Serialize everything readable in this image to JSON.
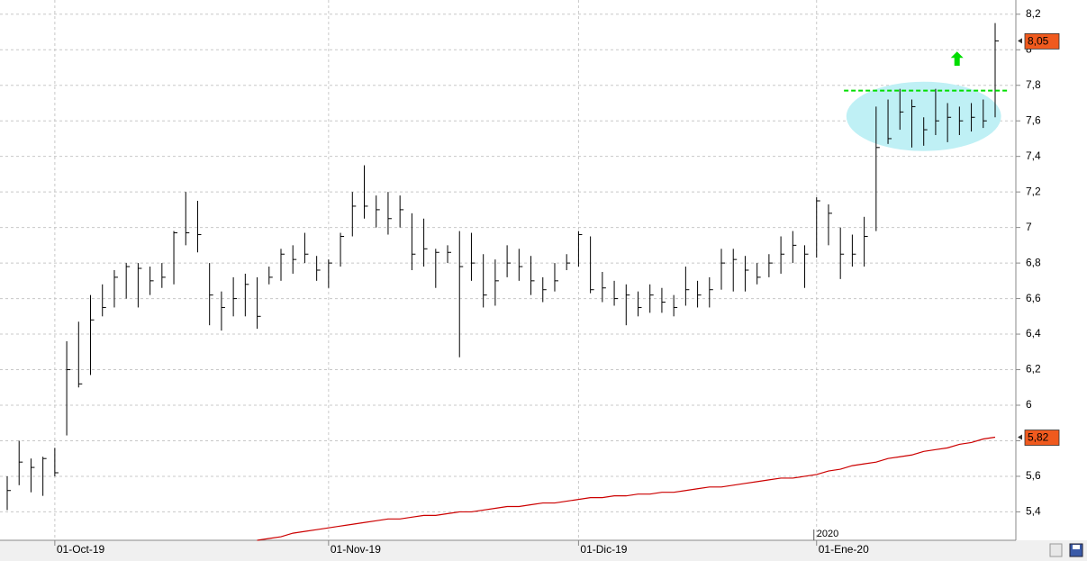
{
  "chart_data": {
    "type": "ohlc",
    "categories": [
      null,
      null,
      null,
      null,
      "01-Oct-19",
      null,
      null,
      null,
      null,
      null,
      null,
      null,
      null,
      null,
      null,
      null,
      null,
      null,
      null,
      null,
      null,
      null,
      null,
      null,
      null,
      null,
      null,
      "01-Nov-19",
      null,
      null,
      null,
      null,
      null,
      null,
      null,
      null,
      null,
      null,
      null,
      null,
      null,
      null,
      null,
      null,
      null,
      null,
      null,
      null,
      "01-Dic-19",
      null,
      null,
      null,
      null,
      null,
      null,
      null,
      null,
      null,
      null,
      null,
      null,
      null,
      null,
      null,
      null,
      null,
      null,
      null,
      "01-Ene-20",
      null,
      null,
      null,
      null,
      null,
      null,
      null,
      null,
      null,
      null,
      null,
      null,
      null,
      null,
      null
    ],
    "ohlc": {
      "color": "#000000",
      "last_label": "8,05",
      "high": [
        5.6,
        5.8,
        5.7,
        5.71,
        5.76,
        6.36,
        6.47,
        6.62,
        6.68,
        6.76,
        6.8,
        6.8,
        6.78,
        6.8,
        6.98,
        7.2,
        7.15,
        6.8,
        6.64,
        6.72,
        6.74,
        6.72,
        6.78,
        6.88,
        6.9,
        6.97,
        6.84,
        6.82,
        6.97,
        7.2,
        7.35,
        7.18,
        7.2,
        7.18,
        7.08,
        7.05,
        6.88,
        6.9,
        6.98,
        6.97,
        6.85,
        6.82,
        6.9,
        6.88,
        6.84,
        6.72,
        6.8,
        6.85,
        6.98,
        6.95,
        6.75,
        6.7,
        6.68,
        6.64,
        6.68,
        6.66,
        6.62,
        6.78,
        6.7,
        6.72,
        6.88,
        6.88,
        6.84,
        6.8,
        6.85,
        6.95,
        6.98,
        6.9,
        7.17,
        7.13,
        7.0,
        6.96,
        7.06,
        7.68,
        7.72,
        7.78,
        7.72,
        7.62,
        7.78,
        7.7,
        7.68,
        7.7,
        7.72,
        8.15
      ],
      "low": [
        5.41,
        5.55,
        5.51,
        5.49,
        5.6,
        5.83,
        6.1,
        6.17,
        6.5,
        6.55,
        6.6,
        6.55,
        6.62,
        6.66,
        6.68,
        6.9,
        6.86,
        6.45,
        6.42,
        6.5,
        6.5,
        6.43,
        6.68,
        6.7,
        6.74,
        6.8,
        6.7,
        6.66,
        6.78,
        6.95,
        7.05,
        7.0,
        6.96,
        7.0,
        6.76,
        6.78,
        6.66,
        6.8,
        6.27,
        6.7,
        6.55,
        6.56,
        6.72,
        6.7,
        6.62,
        6.58,
        6.64,
        6.76,
        6.78,
        6.63,
        6.58,
        6.56,
        6.45,
        6.5,
        6.52,
        6.52,
        6.5,
        6.56,
        6.55,
        6.55,
        6.65,
        6.64,
        6.64,
        6.68,
        6.72,
        6.74,
        6.8,
        6.66,
        6.83,
        6.9,
        6.71,
        6.78,
        6.78,
        6.98,
        7.47,
        7.55,
        7.45,
        7.46,
        7.52,
        7.48,
        7.52,
        7.54,
        7.56,
        7.62
      ],
      "close": [
        5.52,
        5.68,
        5.65,
        5.7,
        5.62,
        6.2,
        6.12,
        6.48,
        6.55,
        6.72,
        6.78,
        6.77,
        6.7,
        6.72,
        6.97,
        6.97,
        6.96,
        6.62,
        6.55,
        6.6,
        6.68,
        6.5,
        6.72,
        6.85,
        6.82,
        6.85,
        6.76,
        6.8,
        6.95,
        7.12,
        7.12,
        7.1,
        7.05,
        7.1,
        6.85,
        6.88,
        6.86,
        6.86,
        6.78,
        6.8,
        6.62,
        6.7,
        6.8,
        6.78,
        6.7,
        6.65,
        6.7,
        6.8,
        6.96,
        6.65,
        6.66,
        6.6,
        6.62,
        6.55,
        6.62,
        6.58,
        6.55,
        6.65,
        6.62,
        6.65,
        6.8,
        6.82,
        6.76,
        6.72,
        6.8,
        6.85,
        6.9,
        6.85,
        7.15,
        7.08,
        6.85,
        6.85,
        6.95,
        7.45,
        7.5,
        7.65,
        7.68,
        7.55,
        7.6,
        7.62,
        7.6,
        7.62,
        7.6,
        8.05
      ]
    },
    "moving_average": {
      "color": "#cc0000",
      "last_label": "5,82",
      "values": [
        null,
        null,
        null,
        null,
        null,
        null,
        null,
        null,
        null,
        null,
        null,
        null,
        null,
        null,
        null,
        null,
        null,
        null,
        null,
        null,
        null,
        5.24,
        5.25,
        5.26,
        5.28,
        5.29,
        5.3,
        5.31,
        5.32,
        5.33,
        5.34,
        5.35,
        5.36,
        5.36,
        5.37,
        5.38,
        5.38,
        5.39,
        5.4,
        5.4,
        5.41,
        5.42,
        5.43,
        5.43,
        5.44,
        5.45,
        5.45,
        5.46,
        5.47,
        5.48,
        5.48,
        5.49,
        5.49,
        5.5,
        5.5,
        5.51,
        5.51,
        5.52,
        5.53,
        5.54,
        5.54,
        5.55,
        5.56,
        5.57,
        5.58,
        5.59,
        5.59,
        5.6,
        5.61,
        5.63,
        5.64,
        5.66,
        5.67,
        5.68,
        5.7,
        5.71,
        5.72,
        5.74,
        5.75,
        5.76,
        5.78,
        5.79,
        5.81,
        5.82
      ]
    },
    "ylim": [
      5.24,
      8.28
    ],
    "yticks": [
      {
        "value": 5.4,
        "label": "5,4"
      },
      {
        "value": 5.6,
        "label": "5,6"
      },
      {
        "value": 5.8,
        "label": "5,8"
      },
      6,
      {
        "value": 6.2,
        "label": "6,2"
      },
      {
        "value": 6.4,
        "label": "6,4"
      },
      {
        "value": 6.6,
        "label": "6,6"
      },
      {
        "value": 6.8,
        "label": "6,8"
      },
      7,
      {
        "value": 7.2,
        "label": "7,2"
      },
      {
        "value": 7.4,
        "label": "7,4"
      },
      {
        "value": 7.6,
        "label": "7,6"
      },
      {
        "value": 7.8,
        "label": "7,8"
      },
      8,
      {
        "value": 8.2,
        "label": "8,2"
      }
    ],
    "grid": true,
    "year_label": {
      "text": "2020",
      "x": 68
    },
    "annotations": [
      {
        "type": "ellipse",
        "x": [
          70.5,
          83.5
        ],
        "y": [
          7.43,
          7.82
        ],
        "color": "#bff0f5"
      },
      {
        "type": "hline",
        "value": 7.77,
        "x": [
          70.3,
          84
        ],
        "color": "#00dd00"
      },
      {
        "type": "arrow",
        "x": 79.8,
        "y": [
          7.91,
          7.99
        ],
        "color": "#00dd00"
      }
    ]
  }
}
